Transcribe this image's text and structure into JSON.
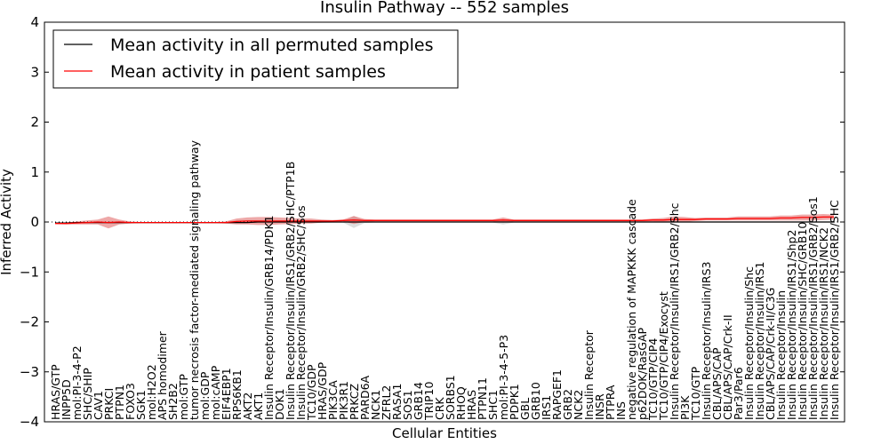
{
  "chart_data": {
    "type": "line",
    "title": "Insulin Pathway -- 552 samples",
    "xlabel": "Cellular Entities",
    "ylabel": "Inferred Activity",
    "ylim": [
      -4,
      4
    ],
    "yticks": [
      -4,
      -3,
      -2,
      -1,
      0,
      1,
      2,
      3,
      4
    ],
    "legend_position": "top-left",
    "categories": [
      "HRAS/GTP",
      "INPP5D",
      "mol:PI-3-4-P2",
      "SHC/SHIP",
      "CAV1",
      "PRKCI",
      "PTPN1",
      "FOXO3",
      "SGK1",
      "mol:H2O2",
      "APS homodimer",
      "SH2B2",
      "mol:GTP",
      "tumor necrosis factor-mediated signaling pathway",
      "mol:GDP",
      "mol:cAMP",
      "EIF4EBP1",
      "RPS6KB1",
      "AKT2",
      "AKT1",
      "Insulin Receptor/Insulin/GRB14/PDK1",
      "DOK1",
      "Insulin Receptor/Insulin/IRS1/GRB2/SHC/PTP1B",
      "Insulin Receptor/Insulin/GRB2/SHC/Sos",
      "TC10/GDP",
      "HRAS/GDP",
      "PIK3CA",
      "PIK3R1",
      "PRKCZ",
      "PARD6A",
      "NCK1",
      "ZFRL2",
      "RASA1",
      "SOS1",
      "GRB14",
      "TRIP10",
      "CRK",
      "SORBS1",
      "RHOQ",
      "HRAS",
      "PTPN11",
      "SHC1",
      "mol:PI-3-4-5-P3",
      "PDPK1",
      "GBL",
      "GRB10",
      "IRS1",
      "RAPGEF1",
      "GRB2",
      "NCK2",
      "Insulin Receptor",
      "INSR",
      "PTPRA",
      "INS",
      "negative regulation of MAPKKK cascade",
      "p62DOK/RasGAP",
      "TC10/GTP/CIP4",
      "TC10/GTP/CIP4/Exocyst",
      "Insulin Receptor/Insulin/IRS1/GRB2/Shc",
      "PI3K",
      "TC10/GTP",
      "Insulin Receptor/Insulin/IRS3",
      "CBL/APS/CAP",
      "CBL/APS/CAP/Crk-II",
      "Par3/Par6",
      "Insulin Receptor/Insulin/Shc",
      "Insulin Receptor/Insulin/IRS1",
      "CBL/APS/CAP/Crk-II/C3G",
      "Insulin Receptor/Insulin",
      "Insulin Receptor/Insulin/IRS1/Shp2",
      "Insulin Receptor/Insulin/SHC/GRB10",
      "Insulin Receptor/Insulin/IRS1/GRB2/Sos1",
      "Insulin Receptor/Insulin/IRS1/NCK2",
      "Insulin Receptor/Insulin/IRS1/GRB2/SHC"
    ],
    "series": [
      {
        "name": "Mean activity in all permuted samples",
        "color": "#000000",
        "values": [
          -0.02,
          -0.02,
          -0.01,
          -0.01,
          -0.01,
          -0.01,
          -0.01,
          -0.01,
          -0.01,
          -0.01,
          -0.01,
          -0.01,
          -0.01,
          -0.01,
          -0.01,
          -0.01,
          -0.01,
          -0.01,
          -0.01,
          0.0,
          0.0,
          0.0,
          0.0,
          0.0,
          0.0,
          0.0,
          0.0,
          0.0,
          0.0,
          0.0,
          0.0,
          0.0,
          0.0,
          0.0,
          0.0,
          0.0,
          0.0,
          0.0,
          0.0,
          0.0,
          0.0,
          0.0,
          0.0,
          0.0,
          0.0,
          0.0,
          0.0,
          0.0,
          0.0,
          0.0,
          0.0,
          0.0,
          0.0,
          0.0,
          0.0,
          0.0,
          0.0,
          0.0,
          0.0,
          0.0,
          0.0,
          0.0,
          0.0,
          0.0,
          0.0,
          0.0,
          0.0,
          0.0,
          0.0,
          0.0,
          0.0,
          0.0,
          0.0,
          0.0
        ],
        "band_halfwidth": [
          0.01,
          0.01,
          0.01,
          0.01,
          0.01,
          0.02,
          0.02,
          0.01,
          0.01,
          0.01,
          0.01,
          0.01,
          0.01,
          0.01,
          0.01,
          0.01,
          0.01,
          0.01,
          0.01,
          0.01,
          0.01,
          0.01,
          0.01,
          0.01,
          0.01,
          0.02,
          0.01,
          0.01,
          0.12,
          0.02,
          0.01,
          0.01,
          0.01,
          0.01,
          0.01,
          0.01,
          0.01,
          0.01,
          0.01,
          0.01,
          0.01,
          0.01,
          0.05,
          0.01,
          0.01,
          0.01,
          0.01,
          0.01,
          0.01,
          0.01,
          0.01,
          0.01,
          0.01,
          0.01,
          0.01,
          0.01,
          0.01,
          0.01,
          0.01,
          0.01,
          0.01,
          0.01,
          0.01,
          0.01,
          0.01,
          0.01,
          0.01,
          0.01,
          0.01,
          0.01,
          0.01,
          0.01,
          0.01,
          0.01
        ]
      },
      {
        "name": "Mean activity in patient samples",
        "color": "#ff0000",
        "values": [
          -0.03,
          -0.03,
          -0.02,
          -0.01,
          0.0,
          -0.01,
          0.0,
          -0.01,
          -0.01,
          -0.01,
          -0.01,
          -0.01,
          -0.01,
          -0.01,
          -0.01,
          -0.01,
          -0.01,
          0.01,
          0.02,
          0.02,
          0.02,
          0.02,
          0.02,
          0.02,
          0.02,
          0.02,
          0.02,
          0.03,
          0.04,
          0.03,
          0.03,
          0.03,
          0.03,
          0.03,
          0.03,
          0.03,
          0.03,
          0.03,
          0.03,
          0.03,
          0.03,
          0.03,
          0.04,
          0.03,
          0.03,
          0.03,
          0.03,
          0.03,
          0.03,
          0.03,
          0.03,
          0.03,
          0.03,
          0.03,
          0.03,
          0.03,
          0.04,
          0.04,
          0.05,
          0.05,
          0.05,
          0.06,
          0.06,
          0.06,
          0.07,
          0.07,
          0.07,
          0.07,
          0.08,
          0.08,
          0.09,
          0.09,
          0.1,
          0.1
        ],
        "band_halfwidth": [
          0.01,
          0.02,
          0.03,
          0.04,
          0.05,
          0.12,
          0.05,
          0.02,
          0.01,
          0.01,
          0.01,
          0.01,
          0.01,
          0.01,
          0.01,
          0.01,
          0.02,
          0.06,
          0.07,
          0.08,
          0.08,
          0.07,
          0.06,
          0.05,
          0.05,
          0.03,
          0.02,
          0.02,
          0.08,
          0.03,
          0.02,
          0.02,
          0.02,
          0.02,
          0.02,
          0.02,
          0.02,
          0.02,
          0.02,
          0.02,
          0.02,
          0.02,
          0.05,
          0.02,
          0.02,
          0.02,
          0.02,
          0.02,
          0.02,
          0.02,
          0.02,
          0.02,
          0.02,
          0.02,
          0.02,
          0.02,
          0.03,
          0.04,
          0.06,
          0.05,
          0.03,
          0.03,
          0.03,
          0.03,
          0.04,
          0.04,
          0.04,
          0.04,
          0.05,
          0.05,
          0.06,
          0.06,
          0.06,
          0.05
        ]
      }
    ],
    "reference_line": 0
  }
}
